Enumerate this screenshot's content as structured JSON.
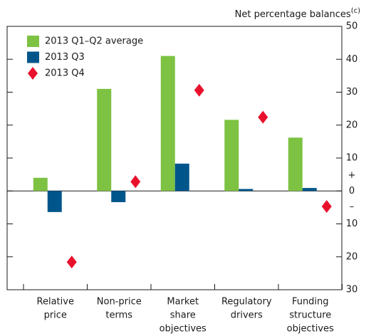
{
  "chart_data": {
    "type": "bar",
    "y_label": "Net percentage balances",
    "y_label_note": "(c)",
    "sign_labels": [
      "+",
      "–"
    ],
    "categories": [
      [
        "Relative",
        "price"
      ],
      [
        "Non-price",
        "terms"
      ],
      [
        "Market",
        "share",
        "objectives"
      ],
      [
        "Regulatory",
        "drivers"
      ],
      [
        "Funding",
        "structure",
        "objectives"
      ]
    ],
    "series": [
      {
        "name": "2013 Q1–Q2 average",
        "color": "#7dc242",
        "marker": "bar",
        "values": [
          4,
          31,
          41,
          21.6,
          16.2
        ]
      },
      {
        "name": "2013 Q3",
        "color": "#00558b",
        "marker": "bar",
        "values": [
          -6.4,
          -3.4,
          8.3,
          0.6,
          0.9
        ]
      },
      {
        "name": "2013 Q4",
        "color": "#e8112d",
        "marker": "diamond",
        "values": [
          -21.6,
          2.8,
          30.6,
          22.4,
          -4.7
        ]
      }
    ],
    "ylim": [
      -30,
      50
    ],
    "yticks": [
      50,
      40,
      30,
      20,
      10,
      0,
      {
        "value": -10,
        "label": "10"
      },
      {
        "value": -20,
        "label": "20"
      },
      {
        "value": -30,
        "label": "30"
      }
    ],
    "legend": "upper left"
  }
}
